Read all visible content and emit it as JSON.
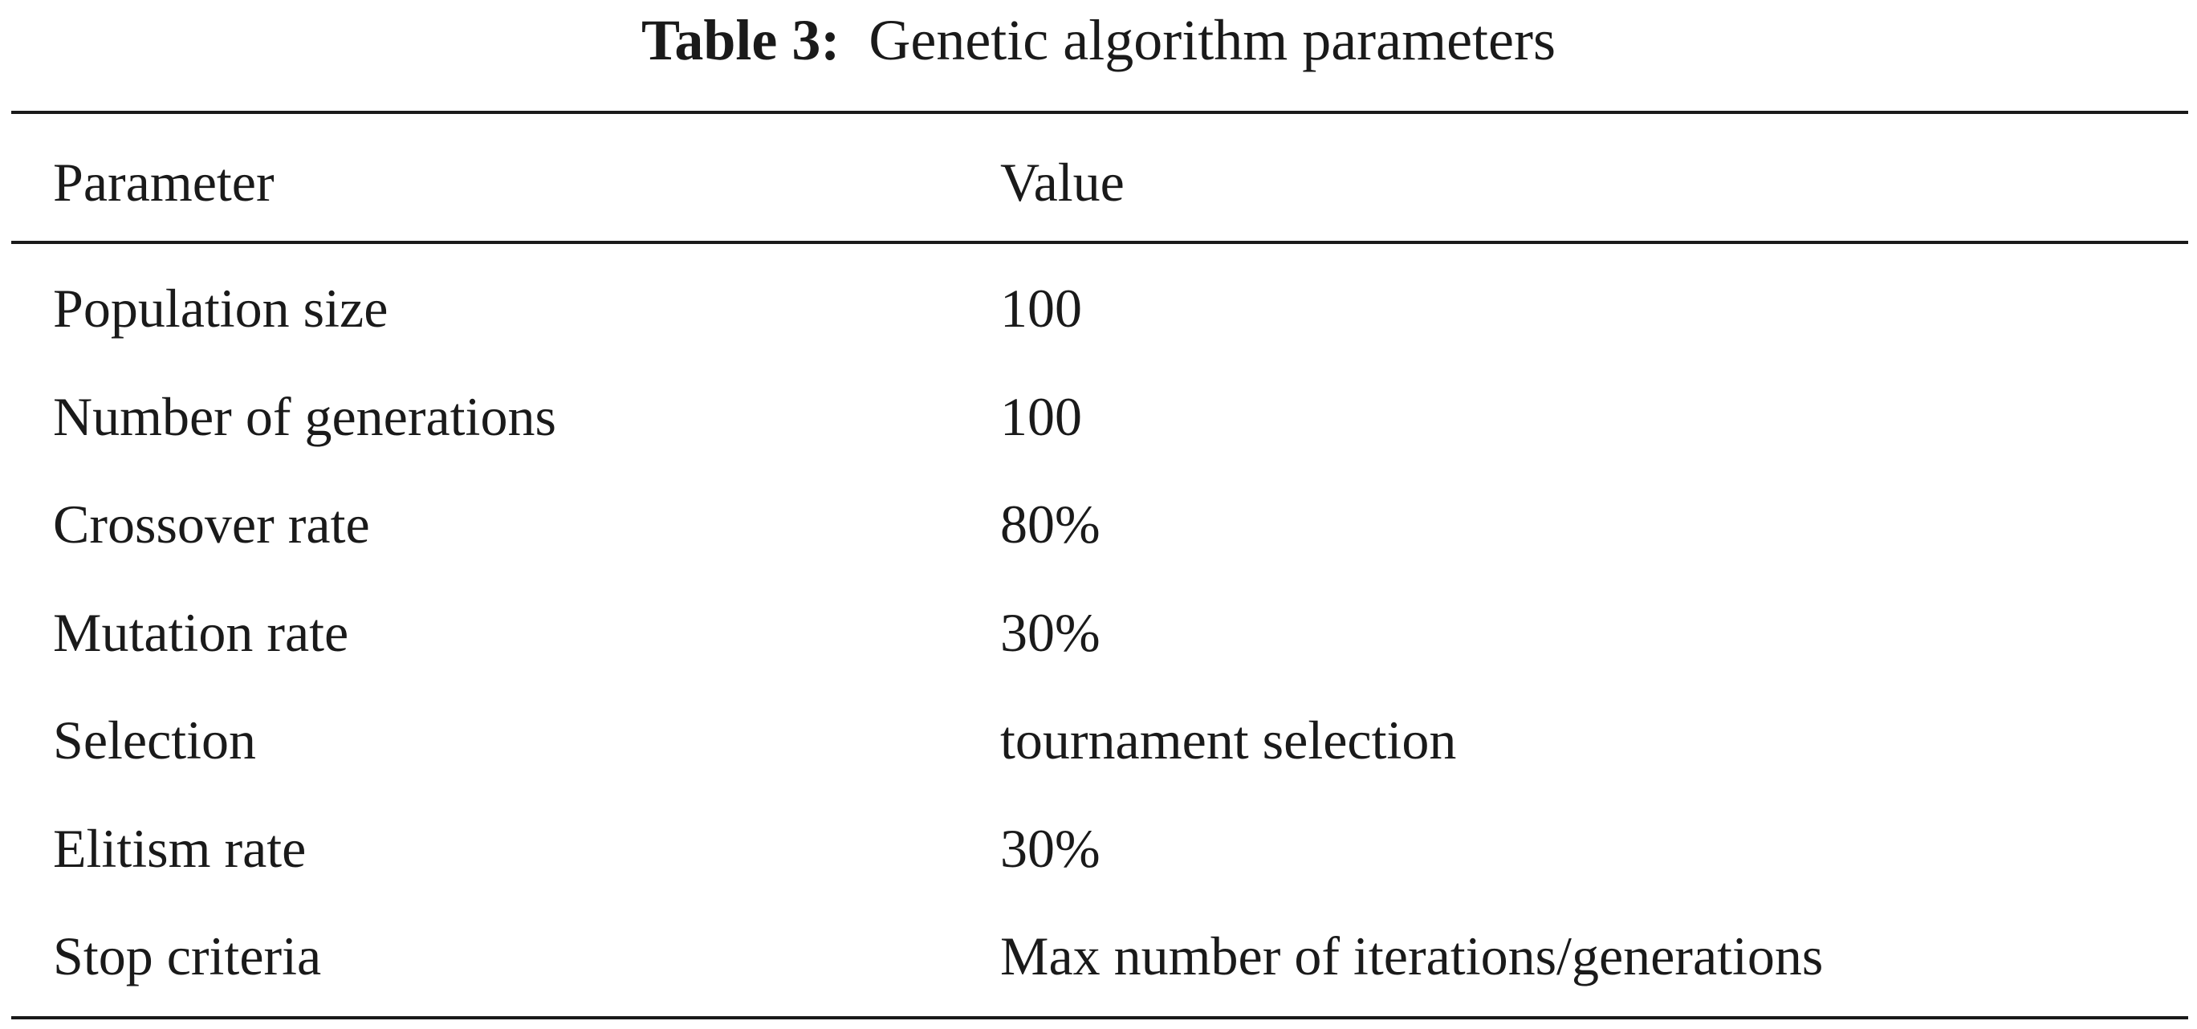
{
  "caption": {
    "label": "Table 3:",
    "title": "Genetic algorithm parameters"
  },
  "table": {
    "header": [
      "Parameter",
      "Value"
    ],
    "rows": [
      [
        "Population size",
        "100"
      ],
      [
        "Number of generations",
        "100"
      ],
      [
        "Crossover rate",
        "80%"
      ],
      [
        "Mutation rate",
        "30%"
      ],
      [
        "Selection",
        "tournament selection"
      ],
      [
        "Elitism rate",
        "30%"
      ],
      [
        "Stop criteria",
        "Max number of iterations/generations"
      ]
    ]
  }
}
